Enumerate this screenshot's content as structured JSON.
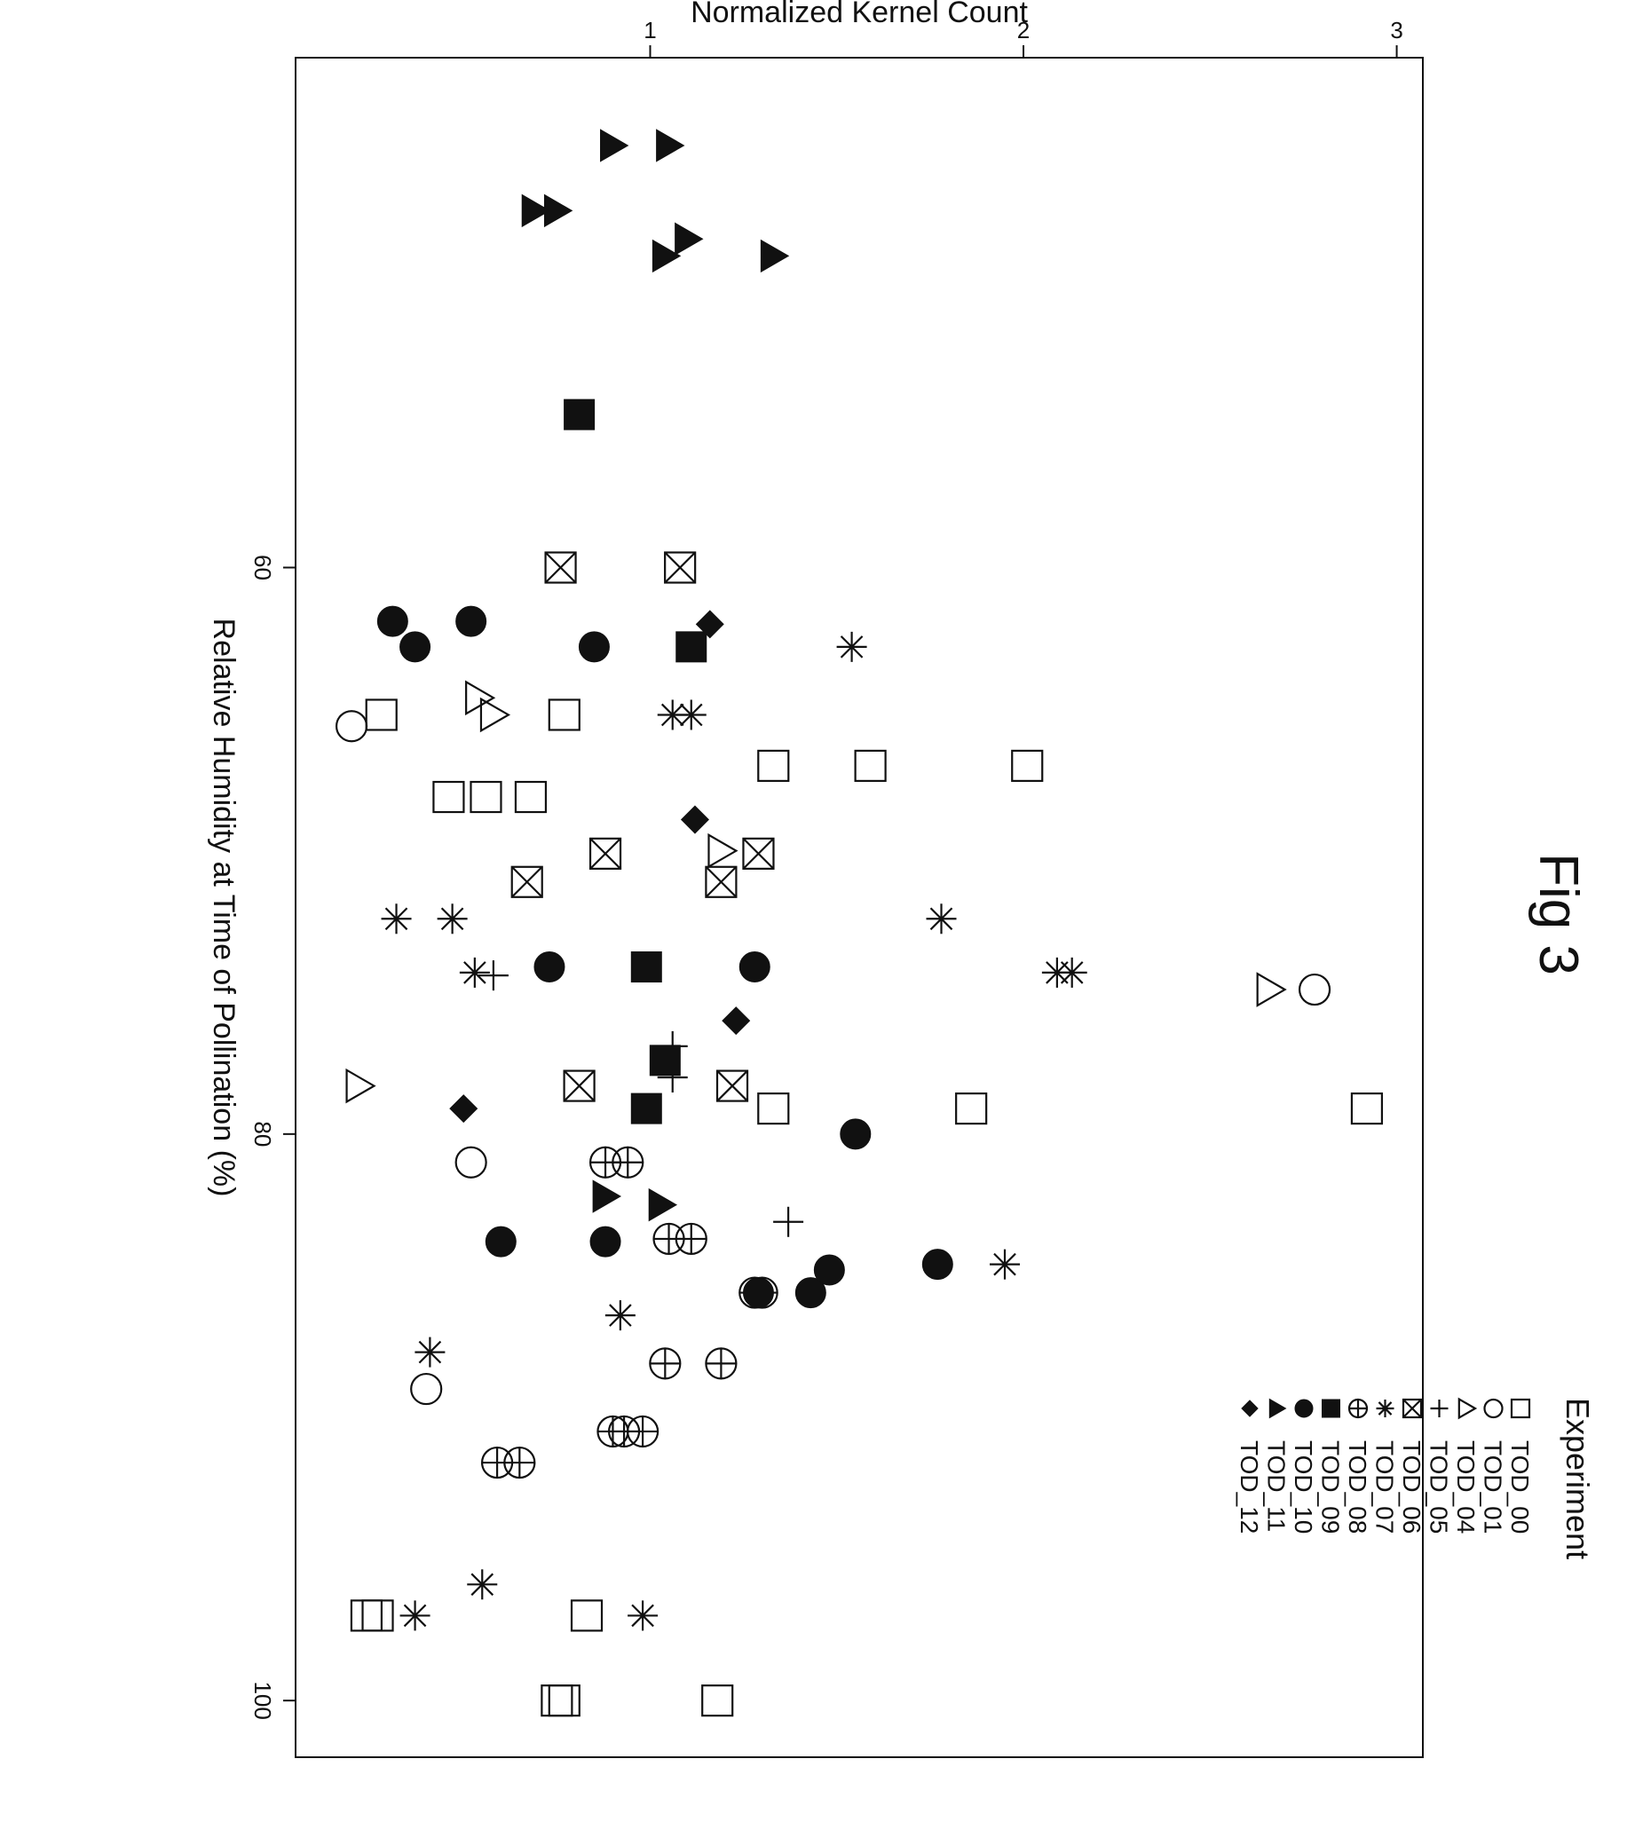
{
  "figure_label": "Fig 3",
  "chart_data": {
    "type": "scatter",
    "title": "",
    "xlabel": "Relative Humidity at Time of Pollination (%)",
    "ylabel": "Normalized Kernel Count",
    "xlim": [
      42,
      102
    ],
    "ylim": [
      0.05,
      3.07
    ],
    "x_ticks": [
      60,
      80,
      100
    ],
    "y_ticks": [
      1,
      2,
      3
    ],
    "grid": false,
    "legend": {
      "title": "Experiment",
      "placement": "top-right"
    },
    "series": [
      {
        "name": "TOD_00",
        "marker": "square-open",
        "points": [
          [
            79.1,
            2.92
          ],
          [
            67,
            2.01
          ],
          [
            79.1,
            1.86
          ],
          [
            67,
            1.59
          ],
          [
            67,
            1.33
          ],
          [
            79.1,
            1.33
          ],
          [
            100,
            1.18
          ],
          [
            97,
            0.83
          ],
          [
            65.2,
            0.77
          ],
          [
            68.1,
            0.68
          ],
          [
            68.1,
            0.56
          ],
          [
            68.1,
            0.46
          ],
          [
            65.2,
            0.28
          ],
          [
            97,
            0.27
          ],
          [
            97,
            0.24
          ],
          [
            100,
            0.77
          ],
          [
            100,
            0.75
          ]
        ]
      },
      {
        "name": "TOD_01",
        "marker": "circle-open",
        "points": [
          [
            74.9,
            2.78
          ],
          [
            81,
            0.52
          ],
          [
            89,
            0.4
          ],
          [
            65.6,
            0.2
          ]
        ]
      },
      {
        "name": "TOD_04",
        "marker": "triangle-open",
        "points": [
          [
            74.9,
            2.66
          ],
          [
            70,
            1.19
          ],
          [
            78.3,
            0.22
          ],
          [
            65.2,
            0.58
          ],
          [
            64.6,
            0.54
          ]
        ]
      },
      {
        "name": "TOD_05",
        "marker": "plus",
        "points": [
          [
            83.1,
            1.37
          ],
          [
            78,
            1.06
          ],
          [
            76.9,
            1.06
          ],
          [
            74.4,
            0.58
          ]
        ]
      },
      {
        "name": "TOD_07",
        "marker": "asterisk",
        "points": [
          [
            84.6,
            1.95
          ],
          [
            74.3,
            2.13
          ],
          [
            74.3,
            2.09
          ],
          [
            72.4,
            1.78
          ],
          [
            62.8,
            1.54
          ],
          [
            65.2,
            1.11
          ],
          [
            65.2,
            1.06
          ],
          [
            97,
            0.98
          ],
          [
            86.4,
            0.92
          ],
          [
            95.9,
            0.55
          ],
          [
            87.7,
            0.41
          ],
          [
            97,
            0.37
          ],
          [
            74.3,
            0.53
          ],
          [
            72.4,
            0.47
          ],
          [
            72.4,
            0.32
          ]
        ]
      },
      {
        "name": "TOD_06",
        "marker": "square-x",
        "points": [
          [
            78.3,
            1.22
          ],
          [
            71.1,
            1.19
          ],
          [
            70.1,
            1.29
          ],
          [
            60,
            1.08
          ],
          [
            78.3,
            0.81
          ],
          [
            70.1,
            0.88
          ],
          [
            71.1,
            0.67
          ],
          [
            60,
            0.76
          ]
        ]
      },
      {
        "name": "TOD_08",
        "marker": "circle-plus",
        "points": [
          [
            88.1,
            1.19
          ],
          [
            88.1,
            1.04
          ],
          [
            83.7,
            1.11
          ],
          [
            83.7,
            1.05
          ],
          [
            85.6,
            1.28
          ],
          [
            85.6,
            1.3
          ],
          [
            81,
            0.94
          ],
          [
            81,
            0.88
          ],
          [
            90.5,
            0.98
          ],
          [
            90.5,
            0.93
          ],
          [
            90.5,
            0.9
          ],
          [
            91.6,
            0.65
          ],
          [
            91.6,
            0.59
          ]
        ]
      },
      {
        "name": "TOD_09",
        "marker": "square-filled",
        "points": [
          [
            79.1,
            0.99
          ],
          [
            77.4,
            1.04
          ],
          [
            74.1,
            0.99
          ],
          [
            62.8,
            1.11
          ],
          [
            54.6,
            0.81
          ]
        ]
      },
      {
        "name": "TOD_10",
        "marker": "circle-filled",
        "points": [
          [
            84.6,
            1.77
          ],
          [
            80,
            1.55
          ],
          [
            85.6,
            1.43
          ],
          [
            84.8,
            1.48
          ],
          [
            85.6,
            1.29
          ],
          [
            74.1,
            1.28
          ],
          [
            83.8,
            0.88
          ],
          [
            83.8,
            0.6
          ],
          [
            74.1,
            0.73
          ],
          [
            62.8,
            0.85
          ],
          [
            61.9,
            0.52
          ],
          [
            62.8,
            0.37
          ],
          [
            61.9,
            0.31
          ]
        ]
      },
      {
        "name": "TOD_11",
        "marker": "triangle-filled",
        "points": [
          [
            82.5,
            1.03
          ],
          [
            82.2,
            0.88
          ],
          [
            49,
            1.33
          ],
          [
            49,
            1.04
          ],
          [
            48.4,
            1.1
          ],
          [
            47.4,
            0.75
          ],
          [
            47.4,
            0.69
          ],
          [
            45.1,
            1.05
          ],
          [
            45.1,
            0.9
          ]
        ]
      },
      {
        "name": "TOD_12",
        "marker": "diamond-filled",
        "points": [
          [
            79.1,
            0.5
          ],
          [
            76,
            1.23
          ],
          [
            68.9,
            1.12
          ],
          [
            62,
            1.16
          ]
        ]
      }
    ]
  }
}
